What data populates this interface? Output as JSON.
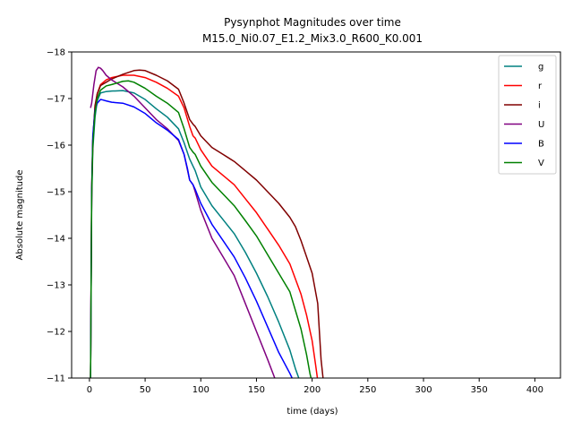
{
  "chart_data": {
    "type": "line",
    "title": "Pysynphot Magnitudes over time",
    "subtitle": "M15.0_Ni0.07_E1.2_Mix3.0_R600_K0.001",
    "xlabel": "time (days)",
    "ylabel": "Absolute magnitude",
    "xlim": [
      -16,
      423
    ],
    "ylim": [
      -11,
      -18
    ],
    "y_inverted": true,
    "grid": false,
    "legend_position": "top-right",
    "xticks": [
      0,
      50,
      100,
      150,
      200,
      250,
      300,
      350,
      400
    ],
    "yticks": [
      -18,
      -17,
      -16,
      -15,
      -14,
      -13,
      -12,
      -11
    ],
    "series": [
      {
        "name": "g",
        "color": "#008080",
        "x": [
          1,
          2,
          3,
          5,
          7,
          10,
          15,
          20,
          30,
          40,
          50,
          60,
          70,
          80,
          85,
          90,
          93,
          95,
          100,
          110,
          120,
          130,
          140,
          150,
          160,
          170,
          180,
          185,
          188,
          190
        ],
        "y": [
          -11,
          -14.8,
          -15.9,
          -16.6,
          -16.95,
          -17.12,
          -17.15,
          -17.16,
          -17.17,
          -17.12,
          -16.98,
          -16.78,
          -16.6,
          -16.35,
          -16.05,
          -15.7,
          -15.55,
          -15.45,
          -15.1,
          -14.7,
          -14.4,
          -14.1,
          -13.7,
          -13.25,
          -12.75,
          -12.2,
          -11.6,
          -11.2,
          -11.0,
          -10.9
        ]
      },
      {
        "name": "r",
        "color": "#ff0000",
        "x": [
          1,
          2,
          3,
          5,
          7,
          10,
          15,
          20,
          30,
          40,
          50,
          60,
          70,
          80,
          85,
          90,
          93,
          95,
          100,
          110,
          120,
          130,
          140,
          150,
          160,
          170,
          180,
          190,
          195,
          200,
          203,
          205
        ],
        "y": [
          -11,
          -15,
          -16.1,
          -16.8,
          -17.1,
          -17.3,
          -17.4,
          -17.45,
          -17.5,
          -17.5,
          -17.45,
          -17.35,
          -17.22,
          -17.05,
          -16.8,
          -16.4,
          -16.2,
          -16.15,
          -15.9,
          -15.55,
          -15.35,
          -15.15,
          -14.85,
          -14.55,
          -14.2,
          -13.85,
          -13.45,
          -12.8,
          -12.35,
          -11.8,
          -11.3,
          -10.95
        ]
      },
      {
        "name": "i",
        "color": "#800000",
        "x": [
          1,
          2,
          3,
          5,
          7,
          10,
          15,
          20,
          30,
          40,
          45,
          50,
          60,
          70,
          80,
          85,
          90,
          93,
          95,
          100,
          110,
          120,
          130,
          140,
          150,
          160,
          170,
          180,
          185,
          190,
          195,
          200,
          205,
          208,
          210
        ],
        "y": [
          -11,
          -15,
          -16.1,
          -16.85,
          -17.1,
          -17.28,
          -17.35,
          -17.42,
          -17.52,
          -17.6,
          -17.61,
          -17.6,
          -17.5,
          -17.38,
          -17.2,
          -16.9,
          -16.55,
          -16.45,
          -16.4,
          -16.2,
          -15.95,
          -15.8,
          -15.65,
          -15.45,
          -15.25,
          -15.0,
          -14.75,
          -14.45,
          -14.25,
          -13.95,
          -13.6,
          -13.25,
          -12.6,
          -11.4,
          -10.95
        ]
      },
      {
        "name": "U",
        "color": "#800080",
        "x": [
          1,
          2,
          4,
          6,
          8,
          10,
          12,
          15,
          20,
          30,
          40,
          50,
          60,
          70,
          80,
          85,
          90,
          93,
          95,
          100,
          110,
          120,
          130,
          140,
          150,
          160,
          168,
          170
        ],
        "y": [
          -16.8,
          -16.9,
          -17.3,
          -17.6,
          -17.67,
          -17.65,
          -17.6,
          -17.5,
          -17.4,
          -17.25,
          -17.05,
          -16.8,
          -16.55,
          -16.35,
          -16.1,
          -15.8,
          -15.25,
          -15.15,
          -15.0,
          -14.6,
          -14.0,
          -13.6,
          -13.2,
          -12.6,
          -12.0,
          -11.4,
          -10.9,
          -10.75
        ]
      },
      {
        "name": "B",
        "color": "#0000ff",
        "x": [
          1,
          2,
          3,
          5,
          7,
          10,
          12,
          15,
          20,
          30,
          40,
          50,
          60,
          70,
          80,
          85,
          88,
          90,
          93,
          95,
          100,
          110,
          120,
          130,
          140,
          150,
          160,
          170,
          180,
          183,
          185
        ],
        "y": [
          -11,
          -15,
          -16.2,
          -16.75,
          -16.9,
          -16.98,
          -16.97,
          -16.95,
          -16.92,
          -16.9,
          -16.82,
          -16.68,
          -16.48,
          -16.32,
          -16.12,
          -15.8,
          -15.5,
          -15.25,
          -15.15,
          -15.05,
          -14.75,
          -14.3,
          -13.95,
          -13.6,
          -13.15,
          -12.65,
          -12.1,
          -11.55,
          -11.1,
          -10.95,
          -10.85
        ]
      },
      {
        "name": "V",
        "color": "#008000",
        "x": [
          1,
          2,
          3,
          5,
          7,
          10,
          15,
          20,
          30,
          35,
          40,
          50,
          60,
          70,
          80,
          85,
          90,
          93,
          95,
          100,
          110,
          120,
          130,
          140,
          150,
          160,
          170,
          180,
          190,
          195,
          198,
          200
        ],
        "y": [
          -11,
          -14.9,
          -16.0,
          -16.7,
          -17.0,
          -17.18,
          -17.27,
          -17.3,
          -17.37,
          -17.38,
          -17.35,
          -17.22,
          -17.05,
          -16.9,
          -16.7,
          -16.35,
          -15.95,
          -15.85,
          -15.8,
          -15.55,
          -15.2,
          -14.95,
          -14.7,
          -14.38,
          -14.05,
          -13.65,
          -13.25,
          -12.85,
          -12.05,
          -11.5,
          -11.1,
          -10.9
        ]
      }
    ]
  }
}
